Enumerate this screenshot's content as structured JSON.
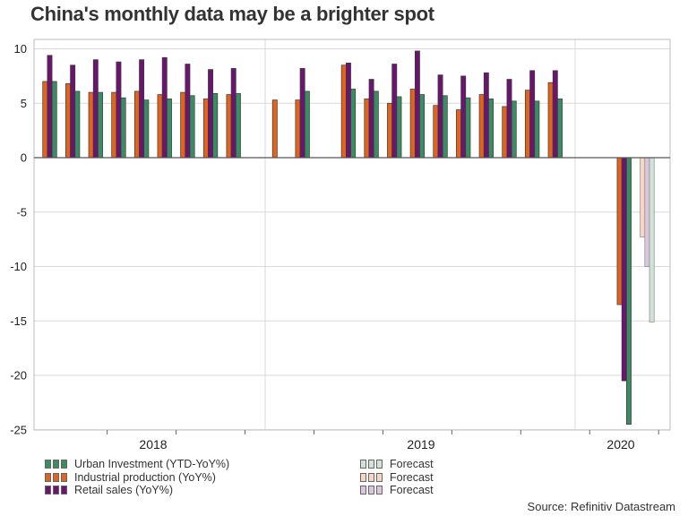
{
  "title": "China's monthly data may be a brighter spot",
  "source": "Source: Refinitiv Datastream",
  "colors": {
    "urban": "#3a8c63",
    "industrial": "#e0641c",
    "retail": "#6b1470",
    "urban_forecast": "#cfe3d6",
    "industrial_forecast": "#f7d7c3",
    "retail_forecast": "#dcc5de",
    "grid": "#d9d9d9"
  },
  "legend": [
    {
      "label": "Urban Investment (YTD-YoY%)",
      "color_key": "urban"
    },
    {
      "label": "Industrial production (YoY%)",
      "color_key": "industrial"
    },
    {
      "label": "Retail sales  (YoY%)",
      "color_key": "retail"
    },
    {
      "label": "Forecast",
      "color_key": "urban_forecast"
    },
    {
      "label": "Forecast",
      "color_key": "industrial_forecast"
    },
    {
      "label": "Forecast",
      "color_key": "retail_forecast"
    }
  ],
  "chart_data": {
    "type": "bar",
    "ylim": [
      -25,
      10
    ],
    "yticks": [
      10,
      5,
      0,
      -5,
      -10,
      -15,
      -20,
      -25
    ],
    "year_labels": [
      "2018",
      "2019",
      "2020"
    ],
    "grid": true,
    "x": [
      "2018-01",
      "2018-02",
      "2018-03",
      "2018-04",
      "2018-05",
      "2018-06",
      "2018-07",
      "2018-08",
      "2018-09",
      "2018-10",
      "2018-11",
      "2018-12",
      "2019-01",
      "2019-02",
      "2019-03",
      "2019-04",
      "2019-05",
      "2019-06",
      "2019-07",
      "2019-08",
      "2019-09",
      "2019-10",
      "2019-11",
      "2019-12",
      "2020-01",
      "2020-02",
      "2020-03"
    ],
    "series": [
      {
        "name": "Industrial production (YoY%)",
        "color_key": "industrial",
        "values": [
          7.0,
          6.8,
          6.0,
          6.0,
          6.1,
          5.8,
          6.0,
          5.4,
          5.8,
          null,
          5.3,
          5.3,
          null,
          8.5,
          5.4,
          5.0,
          6.3,
          4.8,
          4.4,
          5.8,
          4.7,
          6.2,
          6.9,
          null,
          null,
          -13.5,
          -7.3
        ]
      },
      {
        "name": "Retail sales  (YoY%)",
        "color_key": "retail",
        "values": [
          9.4,
          8.5,
          9.0,
          8.8,
          9.0,
          9.2,
          8.6,
          8.1,
          8.2,
          null,
          null,
          8.2,
          null,
          8.7,
          7.2,
          8.6,
          9.8,
          7.6,
          7.5,
          7.8,
          7.2,
          8.0,
          8.0,
          null,
          null,
          -20.5,
          -10.0
        ]
      },
      {
        "name": "Urban Investment (YTD-YoY%)",
        "color_key": "urban",
        "values": [
          7.0,
          6.1,
          6.0,
          5.5,
          5.3,
          5.4,
          5.7,
          5.9,
          5.9,
          null,
          null,
          6.1,
          null,
          6.3,
          6.1,
          5.6,
          5.8,
          5.7,
          5.5,
          5.4,
          5.2,
          5.2,
          5.4,
          null,
          null,
          -24.5,
          -15.1
        ]
      }
    ],
    "forecast_x": [
      "2020-03"
    ]
  }
}
